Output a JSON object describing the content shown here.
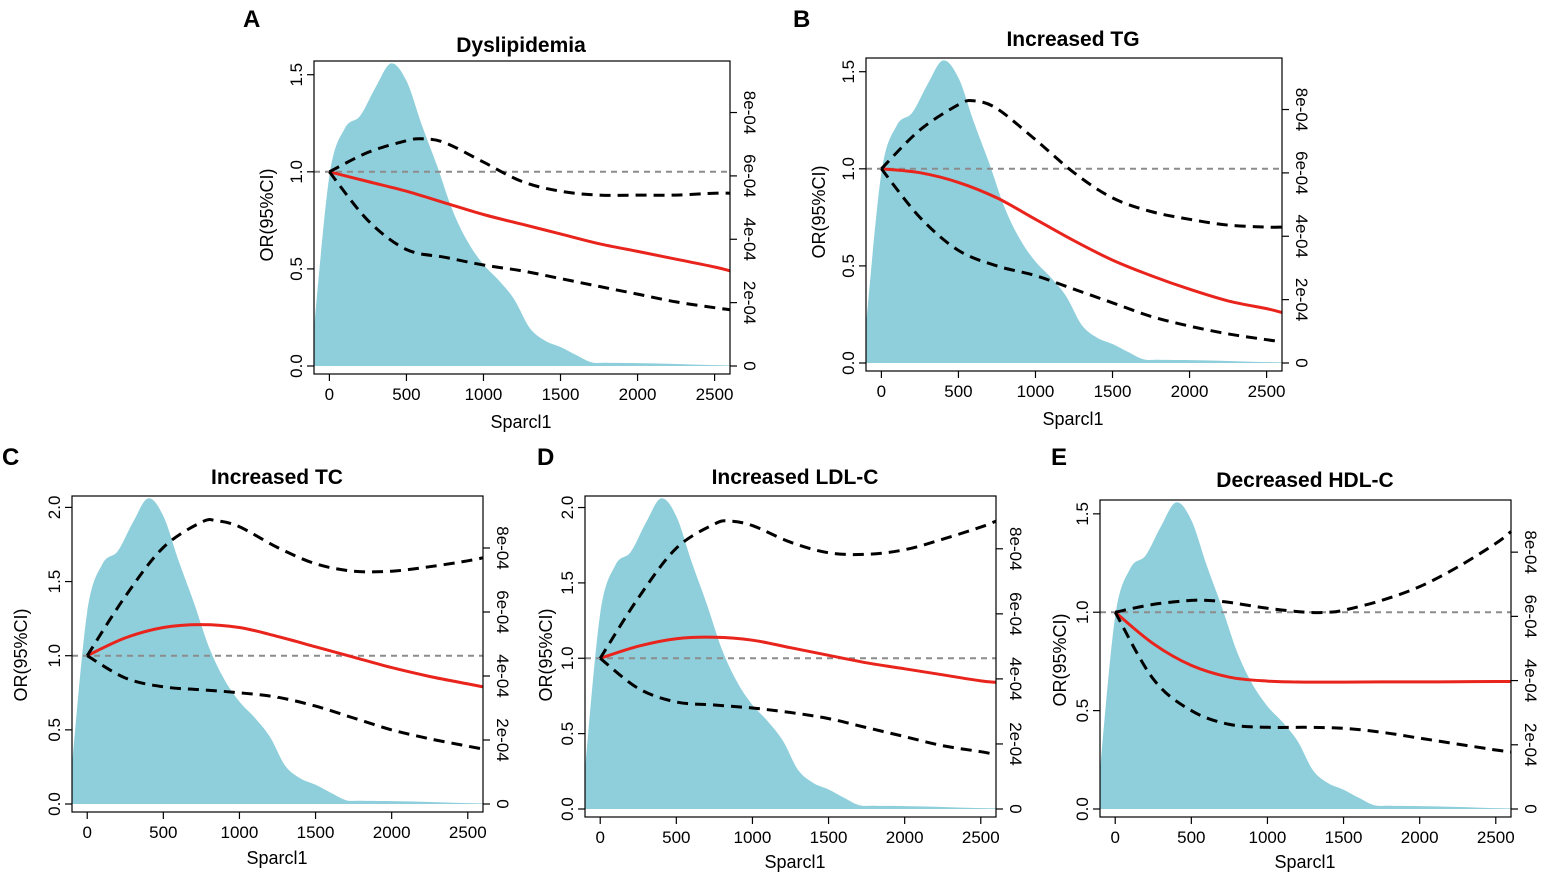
{
  "colors": {
    "density": "#8ECFDB",
    "or_line": "#E8241C",
    "ci_line": "#000000",
    "reference": "#8C8C8C"
  },
  "chart_data": [
    {
      "panel": "A",
      "type": "line",
      "title": "Dyslipidemia",
      "xlabel": "Sparcl1",
      "ylabel": "OR(95%CI)",
      "xlim": [
        -100,
        2600
      ],
      "ylim": [
        0,
        1.55
      ],
      "x_ticks": [
        "0",
        "500",
        "1000",
        "1500",
        "2000",
        "2500"
      ],
      "y_ticks": [
        "0.0",
        "0.5",
        "1.0",
        "1.5"
      ],
      "y2_ticks": [
        "0",
        "2e-04",
        "4e-04",
        "6e-04",
        "8e-04"
      ],
      "y2_range": [
        0,
        0.00095
      ],
      "reference_line": 1.0,
      "series": [
        {
          "name": "OR",
          "style": "solid",
          "x": [
            0,
            250,
            500,
            750,
            1000,
            1250,
            1500,
            1750,
            2000,
            2250,
            2500,
            2600
          ],
          "values": [
            1.0,
            0.95,
            0.9,
            0.84,
            0.78,
            0.73,
            0.68,
            0.63,
            0.59,
            0.55,
            0.51,
            0.49
          ]
        },
        {
          "name": "Upper 95% CI",
          "style": "dashed",
          "x": [
            0,
            250,
            500,
            600,
            750,
            1000,
            1250,
            1500,
            1750,
            2000,
            2250,
            2500,
            2600
          ],
          "values": [
            1.0,
            1.1,
            1.16,
            1.17,
            1.15,
            1.05,
            0.95,
            0.9,
            0.88,
            0.88,
            0.88,
            0.89,
            0.89
          ]
        },
        {
          "name": "Lower 95% CI",
          "style": "dashed",
          "x": [
            0,
            250,
            500,
            750,
            1000,
            1250,
            1500,
            1750,
            2000,
            2250,
            2500,
            2600
          ],
          "values": [
            1.0,
            0.75,
            0.6,
            0.56,
            0.52,
            0.49,
            0.45,
            0.41,
            0.37,
            0.33,
            0.3,
            0.29
          ]
        }
      ],
      "density": {
        "x": [
          -100,
          0,
          100,
          200,
          300,
          400,
          500,
          600,
          700,
          800,
          900,
          1000,
          1100,
          1200,
          1300,
          1400,
          1500,
          1600,
          1700,
          1800,
          2000,
          2200,
          2400,
          2600
        ],
        "values": [
          0.00012,
          0.0006,
          0.00075,
          0.00079,
          0.00088,
          0.000955,
          0.0009,
          0.00076,
          0.00063,
          0.00049,
          0.00039,
          0.00032,
          0.00027,
          0.00021,
          0.00012,
          8e-05,
          6e-05,
          3.5e-05,
          1.2e-05,
          1e-05,
          9e-06,
          7e-06,
          4e-06,
          2e-06
        ]
      }
    },
    {
      "panel": "B",
      "type": "line",
      "title": "Increased TG",
      "xlabel": "Sparcl1",
      "ylabel": "OR(95%CI)",
      "xlim": [
        -100,
        2600
      ],
      "ylim": [
        0,
        1.55
      ],
      "x_ticks": [
        "0",
        "500",
        "1000",
        "1500",
        "2000",
        "2500"
      ],
      "y_ticks": [
        "0.0",
        "0.5",
        "1.0",
        "1.5"
      ],
      "y2_ticks": [
        "0",
        "2e-04",
        "4e-04",
        "6e-04",
        "8e-04"
      ],
      "y2_range": [
        0,
        0.00095
      ],
      "reference_line": 1.0,
      "series": [
        {
          "name": "OR",
          "style": "solid",
          "x": [
            0,
            250,
            500,
            750,
            1000,
            1250,
            1500,
            1750,
            2000,
            2250,
            2500,
            2600
          ],
          "values": [
            1.0,
            0.98,
            0.93,
            0.85,
            0.74,
            0.63,
            0.53,
            0.45,
            0.38,
            0.32,
            0.28,
            0.26
          ]
        },
        {
          "name": "Upper 95% CI",
          "style": "dashed",
          "x": [
            0,
            250,
            500,
            600,
            750,
            1000,
            1250,
            1500,
            1750,
            2000,
            2250,
            2500,
            2600
          ],
          "values": [
            1.0,
            1.2,
            1.33,
            1.35,
            1.31,
            1.15,
            0.98,
            0.85,
            0.78,
            0.74,
            0.71,
            0.7,
            0.7
          ]
        },
        {
          "name": "Lower 95% CI",
          "style": "dashed",
          "x": [
            0,
            250,
            500,
            750,
            1000,
            1250,
            1500,
            1750,
            2000,
            2250,
            2500,
            2600
          ],
          "values": [
            1.0,
            0.75,
            0.58,
            0.5,
            0.45,
            0.38,
            0.31,
            0.24,
            0.19,
            0.15,
            0.12,
            0.11
          ]
        }
      ],
      "density": {
        "x": [
          -100,
          0,
          100,
          200,
          300,
          400,
          500,
          600,
          700,
          800,
          900,
          1000,
          1100,
          1200,
          1300,
          1400,
          1500,
          1600,
          1700,
          1800,
          2000,
          2200,
          2400,
          2600
        ],
        "values": [
          0.00012,
          0.0006,
          0.00075,
          0.00079,
          0.00088,
          0.000955,
          0.0009,
          0.00076,
          0.00063,
          0.00049,
          0.00039,
          0.00032,
          0.00027,
          0.00021,
          0.00012,
          8e-05,
          6e-05,
          3.5e-05,
          1.2e-05,
          1e-05,
          9e-06,
          7e-06,
          4e-06,
          2e-06
        ]
      }
    },
    {
      "panel": "C",
      "type": "line",
      "title": "Increased TC",
      "xlabel": "Sparcl1",
      "ylabel": "OR(95%CI)",
      "xlim": [
        -100,
        2600
      ],
      "ylim": [
        0,
        2.05
      ],
      "x_ticks": [
        "0",
        "500",
        "1000",
        "1500",
        "2000",
        "2500"
      ],
      "y_ticks": [
        "0.0",
        "0.5",
        "1.0",
        "1.5",
        "2.0"
      ],
      "y2_ticks": [
        "0",
        "2e-04",
        "4e-04",
        "6e-04",
        "8e-04"
      ],
      "y2_range": [
        0,
        0.00095
      ],
      "reference_line": 1.0,
      "series": [
        {
          "name": "OR",
          "style": "solid",
          "x": [
            0,
            250,
            500,
            750,
            1000,
            1250,
            1500,
            1750,
            2000,
            2250,
            2500,
            2600
          ],
          "values": [
            1.0,
            1.12,
            1.19,
            1.21,
            1.19,
            1.13,
            1.06,
            0.99,
            0.92,
            0.86,
            0.81,
            0.79
          ]
        },
        {
          "name": "Upper 95% CI",
          "style": "dashed",
          "x": [
            0,
            250,
            500,
            750,
            850,
            1000,
            1250,
            1500,
            1750,
            2000,
            2250,
            2500,
            2600
          ],
          "values": [
            1.0,
            1.4,
            1.73,
            1.9,
            1.91,
            1.87,
            1.73,
            1.62,
            1.57,
            1.57,
            1.6,
            1.64,
            1.66
          ]
        },
        {
          "name": "Lower 95% CI",
          "style": "dashed",
          "x": [
            0,
            250,
            500,
            750,
            1000,
            1250,
            1500,
            1750,
            2000,
            2250,
            2500,
            2600
          ],
          "values": [
            1.0,
            0.85,
            0.79,
            0.77,
            0.75,
            0.72,
            0.66,
            0.58,
            0.5,
            0.44,
            0.39,
            0.37
          ]
        }
      ],
      "density": {
        "x": [
          -100,
          0,
          100,
          200,
          300,
          400,
          500,
          600,
          700,
          800,
          900,
          1000,
          1100,
          1200,
          1300,
          1400,
          1500,
          1600,
          1700,
          1800,
          2000,
          2200,
          2400,
          2600
        ],
        "values": [
          0.00012,
          0.0006,
          0.00075,
          0.00079,
          0.00088,
          0.000955,
          0.0009,
          0.00076,
          0.00063,
          0.00049,
          0.00039,
          0.00032,
          0.00027,
          0.00021,
          0.00012,
          8e-05,
          6e-05,
          3.5e-05,
          1.2e-05,
          1e-05,
          9e-06,
          7e-06,
          4e-06,
          2e-06
        ]
      }
    },
    {
      "panel": "D",
      "type": "line",
      "title": "Increased LDL-C",
      "xlabel": "Sparcl1",
      "ylabel": "OR(95%CI)",
      "xlim": [
        -100,
        2600
      ],
      "ylim": [
        0,
        2.05
      ],
      "x_ticks": [
        "0",
        "500",
        "1000",
        "1500",
        "2000",
        "2500"
      ],
      "y_ticks": [
        "0.0",
        "0.5",
        "1.0",
        "1.5",
        "2.0"
      ],
      "y2_ticks": [
        "0",
        "2e-04",
        "4e-04",
        "6e-04",
        "8e-04"
      ],
      "y2_range": [
        0,
        0.00095
      ],
      "reference_line": 1.0,
      "series": [
        {
          "name": "OR",
          "style": "solid",
          "x": [
            0,
            250,
            500,
            750,
            1000,
            1250,
            1500,
            1750,
            2000,
            2250,
            2500,
            2600
          ],
          "values": [
            1.0,
            1.08,
            1.13,
            1.14,
            1.12,
            1.07,
            1.02,
            0.97,
            0.93,
            0.89,
            0.85,
            0.84
          ]
        },
        {
          "name": "Upper 95% CI",
          "style": "dashed",
          "x": [
            0,
            250,
            500,
            750,
            850,
            1000,
            1250,
            1500,
            1750,
            2000,
            2250,
            2500,
            2600
          ],
          "values": [
            1.0,
            1.4,
            1.73,
            1.89,
            1.91,
            1.88,
            1.77,
            1.7,
            1.69,
            1.72,
            1.79,
            1.87,
            1.91
          ]
        },
        {
          "name": "Lower 95% CI",
          "style": "dashed",
          "x": [
            0,
            250,
            500,
            750,
            1000,
            1250,
            1500,
            1750,
            2000,
            2250,
            2500,
            2600
          ],
          "values": [
            1.0,
            0.8,
            0.71,
            0.69,
            0.67,
            0.64,
            0.6,
            0.54,
            0.48,
            0.42,
            0.38,
            0.36
          ]
        }
      ],
      "density": {
        "x": [
          -100,
          0,
          100,
          200,
          300,
          400,
          500,
          600,
          700,
          800,
          900,
          1000,
          1100,
          1200,
          1300,
          1400,
          1500,
          1600,
          1700,
          1800,
          2000,
          2200,
          2400,
          2600
        ],
        "values": [
          0.00012,
          0.0006,
          0.00075,
          0.00079,
          0.00088,
          0.000955,
          0.0009,
          0.00076,
          0.00063,
          0.00049,
          0.00039,
          0.00032,
          0.00027,
          0.00021,
          0.00012,
          8e-05,
          6e-05,
          3.5e-05,
          1.2e-05,
          1e-05,
          9e-06,
          7e-06,
          4e-06,
          2e-06
        ]
      }
    },
    {
      "panel": "E",
      "type": "line",
      "title": "Decreased HDL-C",
      "xlabel": "Sparcl1",
      "ylabel": "OR(95%CI)",
      "xlim": [
        -100,
        2600
      ],
      "ylim": [
        0,
        1.55
      ],
      "x_ticks": [
        "0",
        "500",
        "1000",
        "1500",
        "2000",
        "2500"
      ],
      "y_ticks": [
        "0.0",
        "0.5",
        "1.0",
        "1.5"
      ],
      "y2_ticks": [
        "0",
        "2e-04",
        "4e-04",
        "6e-04",
        "8e-04"
      ],
      "y2_range": [
        0,
        0.00095
      ],
      "reference_line": 1.0,
      "series": [
        {
          "name": "OR",
          "style": "solid",
          "x": [
            0,
            250,
            500,
            750,
            1000,
            1250,
            1500,
            1750,
            2000,
            2250,
            2500,
            2600
          ],
          "values": [
            1.0,
            0.84,
            0.73,
            0.67,
            0.65,
            0.645,
            0.645,
            0.646,
            0.646,
            0.647,
            0.648,
            0.648
          ]
        },
        {
          "name": "Upper 95% CI",
          "style": "dashed",
          "x": [
            0,
            250,
            500,
            600,
            750,
            1000,
            1250,
            1400,
            1500,
            1750,
            2000,
            2250,
            2500,
            2600
          ],
          "values": [
            1.0,
            1.04,
            1.06,
            1.06,
            1.05,
            1.02,
            1.0,
            1.0,
            1.01,
            1.06,
            1.13,
            1.23,
            1.35,
            1.41
          ]
        },
        {
          "name": "Lower 95% CI",
          "style": "dashed",
          "x": [
            0,
            250,
            500,
            750,
            1000,
            1250,
            1500,
            1750,
            2000,
            2250,
            2500,
            2600
          ],
          "values": [
            1.0,
            0.66,
            0.5,
            0.43,
            0.415,
            0.415,
            0.41,
            0.39,
            0.36,
            0.33,
            0.3,
            0.29
          ]
        }
      ],
      "density": {
        "x": [
          -100,
          0,
          100,
          200,
          300,
          400,
          500,
          600,
          700,
          800,
          900,
          1000,
          1100,
          1200,
          1300,
          1400,
          1500,
          1600,
          1700,
          1800,
          2000,
          2200,
          2400,
          2600
        ],
        "values": [
          0.00012,
          0.0006,
          0.00075,
          0.00079,
          0.00088,
          0.000955,
          0.0009,
          0.00076,
          0.00063,
          0.00049,
          0.00039,
          0.00032,
          0.00027,
          0.00021,
          0.00012,
          8e-05,
          6e-05,
          3.5e-05,
          1.2e-05,
          1e-05,
          9e-06,
          7e-06,
          4e-06,
          2e-06
        ]
      }
    }
  ]
}
